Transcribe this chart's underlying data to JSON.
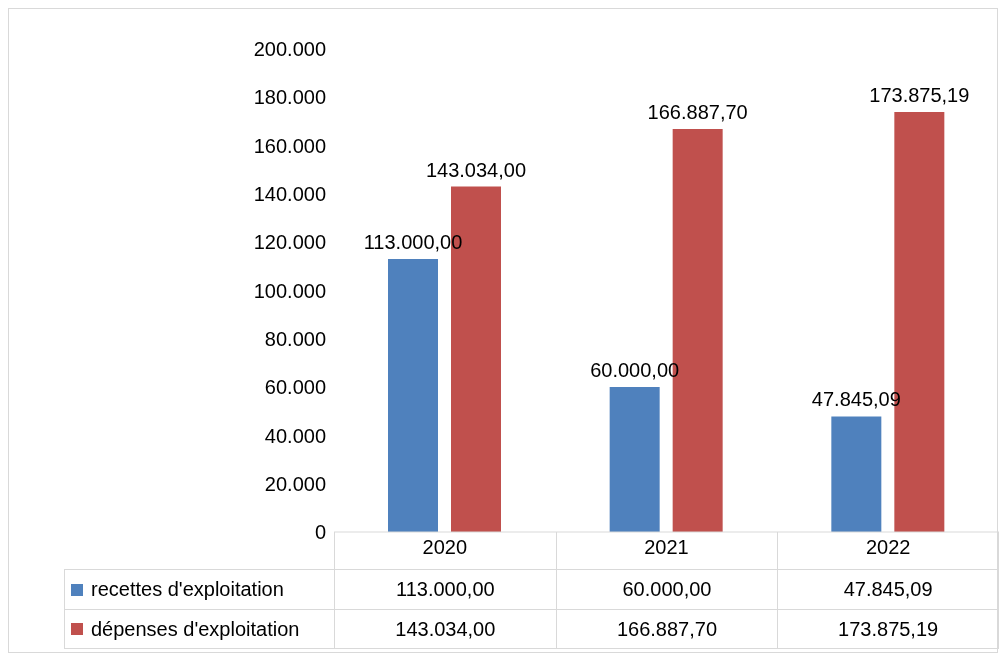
{
  "chart_data": {
    "type": "bar",
    "categories": [
      "2020",
      "2021",
      "2022"
    ],
    "series": [
      {
        "name": "recettes d'exploitation",
        "color": "#4f81bd",
        "values": [
          113000,
          60000,
          47845.09
        ],
        "value_labels": [
          "113.000,00",
          "60.000,00",
          "47.845,09"
        ]
      },
      {
        "name": "dépenses d'exploitation",
        "color": "#c0504d",
        "values": [
          143034,
          166887.7,
          173875.19
        ],
        "value_labels": [
          "143.034,00",
          "166.887,70",
          "173.875,19"
        ]
      }
    ],
    "ylim": [
      0,
      200000
    ],
    "yticks": [
      {
        "value": 0,
        "label": "0"
      },
      {
        "value": 20000,
        "label": "20.000"
      },
      {
        "value": 40000,
        "label": "40.000"
      },
      {
        "value": 60000,
        "label": "60.000"
      },
      {
        "value": 80000,
        "label": "80.000"
      },
      {
        "value": 100000,
        "label": "100.000"
      },
      {
        "value": 120000,
        "label": "120.000"
      },
      {
        "value": 140000,
        "label": "140.000"
      },
      {
        "value": 160000,
        "label": "160.000"
      },
      {
        "value": 180000,
        "label": "180.000"
      },
      {
        "value": 200000,
        "label": "200.000"
      }
    ],
    "legend": "bottom"
  }
}
